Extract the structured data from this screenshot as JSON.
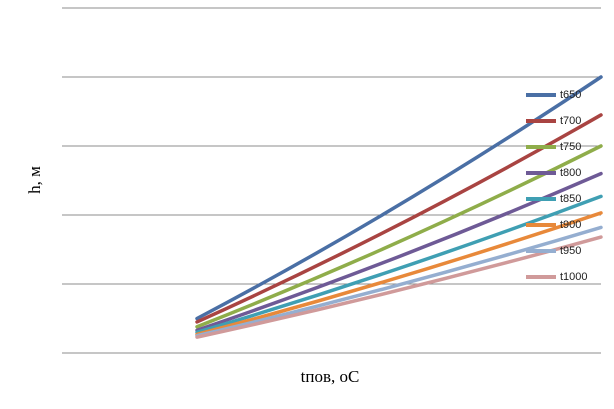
{
  "chart_data": {
    "type": "line",
    "title": "",
    "xlabel": "tпов, оС",
    "ylabel": "h, м",
    "ylim": [
      0,
      5
    ],
    "grid": true,
    "legend": "right",
    "x": [
      0,
      1
    ],
    "series": [
      {
        "name": "t650",
        "color": "#4a6fa5",
        "values": [
          0.5,
          4.0
        ]
      },
      {
        "name": "t700",
        "color": "#a94442",
        "values": [
          0.45,
          3.45
        ]
      },
      {
        "name": "t750",
        "color": "#8fad4a",
        "values": [
          0.38,
          3.0
        ]
      },
      {
        "name": "t800",
        "color": "#6e5a96",
        "values": [
          0.33,
          2.6
        ]
      },
      {
        "name": "t850",
        "color": "#3f9fb3",
        "values": [
          0.3,
          2.27
        ]
      },
      {
        "name": "t900",
        "color": "#e8893a",
        "values": [
          0.27,
          2.03
        ]
      },
      {
        "name": "t950",
        "color": "#95aed0",
        "values": [
          0.25,
          1.82
        ]
      },
      {
        "name": "t1000",
        "color": "#d09a9a",
        "values": [
          0.23,
          1.68
        ]
      }
    ]
  }
}
